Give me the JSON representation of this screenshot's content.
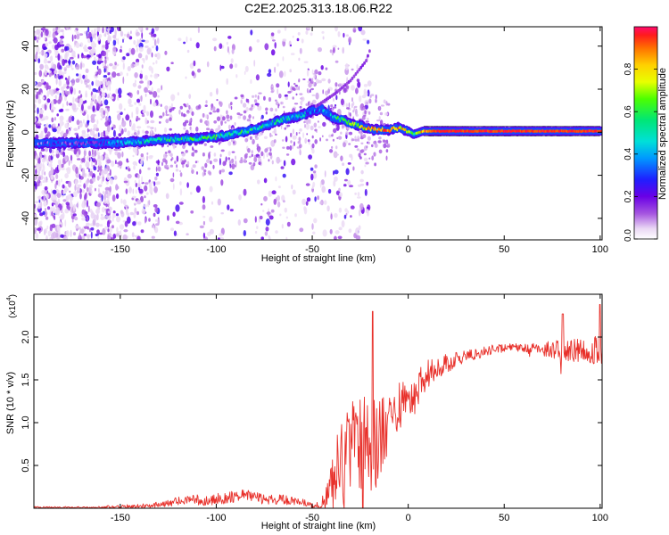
{
  "title": "C2E2.2025.313.18.06.R22",
  "colors": {
    "snr_line": "#e8302a",
    "frame": "#000000",
    "background": "#ffffff"
  },
  "chart_data": [
    {
      "type": "heatmap",
      "name": "spectrogram",
      "xlabel": "Height of straight line (km)",
      "ylabel": "Frequency (Hz)",
      "xlim": [
        -195,
        101
      ],
      "ylim": [
        -50,
        49
      ],
      "x_ticks": [
        -150,
        -100,
        -50,
        0,
        50,
        100
      ],
      "x_tick_labels": [
        "-150",
        "-100",
        "-50",
        "0",
        "50",
        "100"
      ],
      "y_ticks": [
        -40,
        -20,
        0,
        20,
        40
      ],
      "y_tick_labels": [
        "-40",
        "-20",
        "0",
        "20",
        "40"
      ],
      "ridge": {
        "x": [
          -195,
          -170,
          -150,
          -130,
          -110,
          -95,
          -80,
          -65,
          -55,
          -50,
          -45,
          -40,
          -35,
          -30,
          -25,
          -20,
          -15,
          -10,
          -5,
          0,
          3,
          8,
          15,
          50,
          100
        ],
        "freq": [
          -5,
          -5,
          -5,
          -3.5,
          -3,
          -1.5,
          1.5,
          6,
          8,
          10,
          11,
          7,
          6,
          4,
          3,
          1.5,
          1,
          1,
          2,
          0.5,
          -1,
          0.5,
          0.5,
          0.5,
          0.5
        ],
        "amplitude": [
          0.2,
          0.25,
          0.35,
          0.45,
          0.55,
          0.55,
          0.5,
          0.45,
          0.4,
          0.35,
          0.3,
          0.45,
          0.55,
          0.6,
          0.7,
          0.85,
          0.9,
          0.95,
          0.85,
          0.7,
          0.5,
          0.9,
          0.95,
          0.95,
          0.95
        ]
      },
      "harmonic_branch": {
        "x": [
          -48,
          -38,
          -30,
          -22,
          -20
        ],
        "freq": [
          12,
          18,
          24,
          33,
          38
        ]
      },
      "colorbar": {
        "label": "Normalized spectral amplitude",
        "range": [
          0,
          1
        ],
        "ticks": [
          0.0,
          0.2,
          0.4,
          0.6,
          0.8
        ],
        "tick_labels": [
          "0.0",
          "0.2",
          "0.4",
          "0.6",
          "0.8"
        ]
      }
    },
    {
      "type": "line",
      "name": "snr",
      "xlabel": "Height of straight line (km)",
      "ylabel": "SNR (10 * v/v)",
      "y_multiplier_label": "(x10",
      "y_multiplier_exp": "4",
      "xlim": [
        -195,
        101
      ],
      "ylim": [
        0,
        2.5
      ],
      "x_ticks": [
        -150,
        -100,
        -50,
        0,
        50,
        100
      ],
      "x_tick_labels": [
        "-150",
        "-100",
        "-50",
        "0",
        "50",
        "100"
      ],
      "y_ticks": [
        0.5,
        1.0,
        1.5,
        2.0
      ],
      "y_tick_labels": [
        "0.5",
        "1.0",
        "1.5",
        "2.0"
      ],
      "series": [
        {
          "name": "SNR",
          "x": [
            -195,
            -180,
            -165,
            -150,
            -135,
            -125,
            -115,
            -105,
            -95,
            -85,
            -75,
            -65,
            -55,
            -48,
            -45,
            -40,
            -35,
            -30,
            -25,
            -22,
            -20,
            -18,
            -15,
            -12,
            -10,
            -5,
            0,
            5,
            10,
            20,
            30,
            40,
            50,
            60,
            70,
            80,
            90,
            100
          ],
          "mean": [
            0.01,
            0.01,
            0.01,
            0.02,
            0.03,
            0.06,
            0.11,
            0.09,
            0.12,
            0.14,
            0.11,
            0.1,
            0.07,
            0.03,
            0.05,
            0.3,
            0.62,
            0.75,
            0.78,
            0.82,
            0.8,
            0.78,
            0.8,
            0.85,
            1.05,
            1.2,
            1.3,
            1.42,
            1.55,
            1.7,
            1.78,
            1.84,
            1.87,
            1.88,
            1.86,
            1.85,
            1.84,
            1.85
          ],
          "noise": [
            0.01,
            0.01,
            0.01,
            0.02,
            0.03,
            0.04,
            0.06,
            0.06,
            0.07,
            0.08,
            0.06,
            0.06,
            0.04,
            0.03,
            0.06,
            0.25,
            0.45,
            0.5,
            0.55,
            0.6,
            0.6,
            0.6,
            0.55,
            0.45,
            0.35,
            0.3,
            0.25,
            0.22,
            0.18,
            0.12,
            0.08,
            0.06,
            0.05,
            0.05,
            0.08,
            0.12,
            0.14,
            0.18
          ]
        }
      ]
    }
  ]
}
